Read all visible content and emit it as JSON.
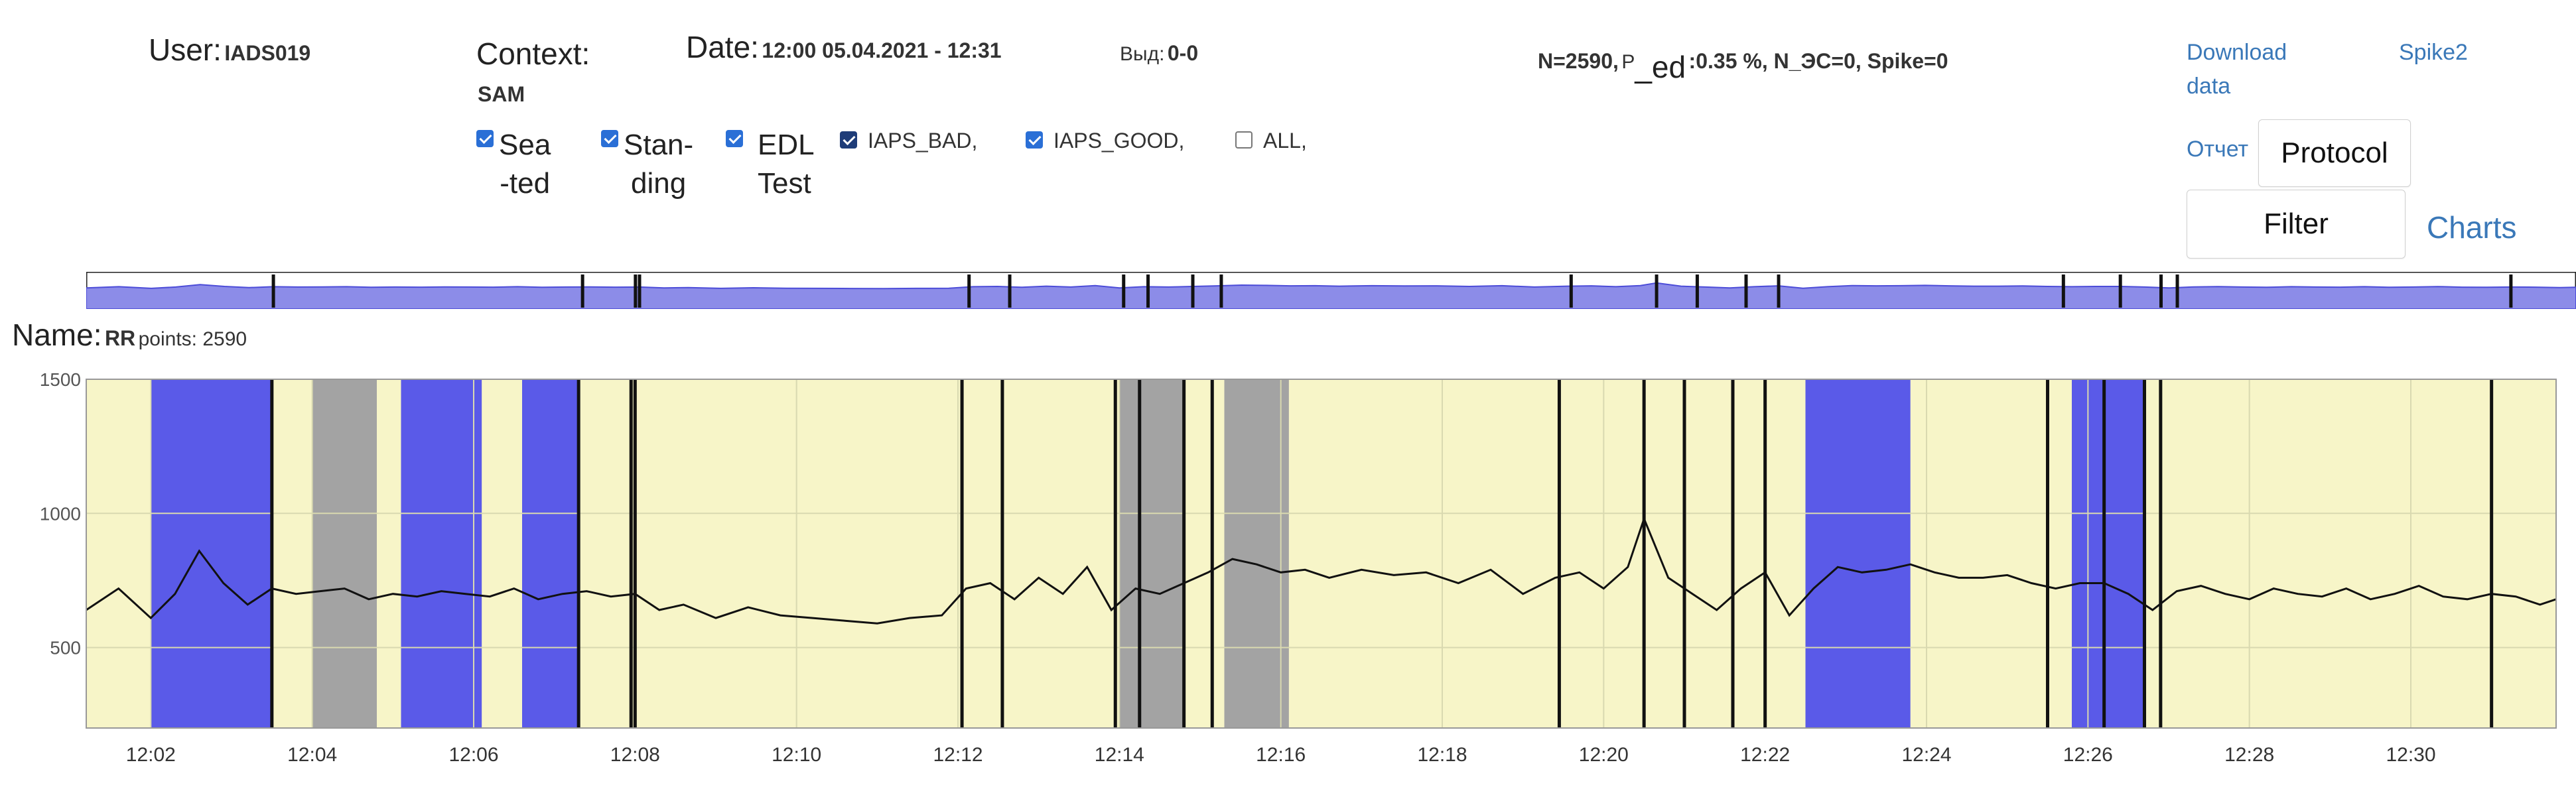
{
  "header": {
    "user_label": "User:",
    "user_value": "IADS019",
    "context_label": "Context:",
    "context_value": "SAM",
    "date_label": "Date:",
    "date_value": "12:00 05.04.2021 - 12:31",
    "vyd_label": "Выд:",
    "vyd_value": "0-0",
    "stats_n": "N=2590,",
    "stats_p_prefix": "P",
    "stats_p_sub": "_ed",
    "stats_rest": ":0.35 %, N_ЭС=0, Spike=0"
  },
  "checkboxes": [
    {
      "label": "Sea\n-ted",
      "checked": true,
      "style": "big"
    },
    {
      "label": "Stan-\nding",
      "checked": true,
      "style": "big"
    },
    {
      "label": "EDL\nTest",
      "checked": true,
      "style": "big"
    },
    {
      "label": "IAPS_BAD,",
      "checked": true,
      "style": "small"
    },
    {
      "label": "IAPS_GOOD,",
      "checked": true,
      "style": "small"
    },
    {
      "label": "ALL,",
      "checked": false,
      "style": "small"
    }
  ],
  "links": {
    "download_line1": "Download",
    "download_line2": "data",
    "spike2": "Spike2",
    "report": "Отчет",
    "charts": "Charts"
  },
  "buttons": {
    "protocol": "Protocol",
    "filter": "Filter"
  },
  "chart": {
    "name_label": "Name:",
    "name_value": "RR",
    "points_label": "points: 2590"
  },
  "colors": {
    "seated_band": "#f7f5c8",
    "blue_band": "#5a5ae8",
    "gray_band": "#a3a3a3",
    "overview_fill": "#8c8ce8",
    "line": "#111111",
    "link": "#3a78b8"
  },
  "chart_data": {
    "type": "line",
    "title": "",
    "xlabel": "",
    "ylabel": "",
    "y_ticks": [
      "1500",
      "1000",
      "500"
    ],
    "ylim": [
      200,
      1500
    ],
    "x_ticks": [
      "12:02",
      "12:04",
      "12:06",
      "12:08",
      "12:10",
      "12:12",
      "12:14",
      "12:16",
      "12:18",
      "12:20",
      "12:22",
      "12:24",
      "12:26",
      "12:28",
      "12:30"
    ],
    "x_range_minutes": [
      1.2,
      31.8
    ],
    "bands": [
      {
        "from": 2.0,
        "to": 3.5,
        "kind": "blue"
      },
      {
        "from": 4.0,
        "to": 4.8,
        "kind": "gray"
      },
      {
        "from": 5.1,
        "to": 6.1,
        "kind": "blue"
      },
      {
        "from": 6.6,
        "to": 7.3,
        "kind": "blue"
      },
      {
        "from": 14.0,
        "to": 14.8,
        "kind": "gray"
      },
      {
        "from": 15.3,
        "to": 16.1,
        "kind": "gray"
      },
      {
        "from": 22.5,
        "to": 23.8,
        "kind": "blue"
      },
      {
        "from": 25.8,
        "to": 26.7,
        "kind": "blue"
      }
    ],
    "markers": [
      3.5,
      7.3,
      7.95,
      8.0,
      12.05,
      12.55,
      13.95,
      14.25,
      14.8,
      15.15,
      19.45,
      20.5,
      21.0,
      21.6,
      22.0,
      25.5,
      26.2,
      26.7,
      26.9,
      31.0
    ],
    "series": [
      {
        "x": [
          1.2,
          1.6,
          2.0,
          2.3,
          2.6,
          2.9,
          3.2,
          3.5,
          3.8,
          4.1,
          4.4,
          4.7,
          5.0,
          5.3,
          5.6,
          5.9,
          6.2,
          6.5,
          6.8,
          7.1,
          7.4,
          7.7,
          8.0,
          8.3,
          8.6,
          9.0,
          9.4,
          9.8,
          10.2,
          10.6,
          11.0,
          11.4,
          11.8,
          12.1,
          12.4,
          12.7,
          13.0,
          13.3,
          13.6,
          13.9,
          14.2,
          14.5,
          14.8,
          15.1,
          15.4,
          15.7,
          16.0,
          16.3,
          16.6,
          17.0,
          17.4,
          17.8,
          18.2,
          18.6,
          19.0,
          19.4,
          19.7,
          20.0,
          20.3,
          20.5,
          20.8,
          21.1,
          21.4,
          21.7,
          22.0,
          22.3,
          22.6,
          22.9,
          23.2,
          23.5,
          23.8,
          24.1,
          24.4,
          24.7,
          25.0,
          25.3,
          25.6,
          25.9,
          26.2,
          26.5,
          26.8,
          27.1,
          27.4,
          27.7,
          28.0,
          28.3,
          28.6,
          28.9,
          29.2,
          29.5,
          29.8,
          30.1,
          30.4,
          30.7,
          31.0,
          31.3,
          31.6,
          31.8
        ],
        "values": [
          640,
          720,
          610,
          700,
          860,
          740,
          660,
          720,
          700,
          710,
          720,
          680,
          700,
          690,
          710,
          700,
          690,
          720,
          680,
          700,
          710,
          690,
          700,
          640,
          660,
          610,
          650,
          620,
          610,
          600,
          590,
          610,
          620,
          720,
          740,
          680,
          760,
          700,
          800,
          640,
          720,
          700,
          740,
          780,
          830,
          810,
          780,
          790,
          760,
          790,
          770,
          780,
          740,
          790,
          700,
          760,
          780,
          720,
          800,
          980,
          760,
          700,
          640,
          720,
          780,
          620,
          720,
          800,
          780,
          790,
          810,
          780,
          760,
          760,
          770,
          740,
          720,
          740,
          740,
          700,
          640,
          710,
          730,
          700,
          680,
          720,
          700,
          690,
          720,
          680,
          700,
          730,
          690,
          680,
          700,
          690,
          660,
          680
        ]
      }
    ]
  }
}
